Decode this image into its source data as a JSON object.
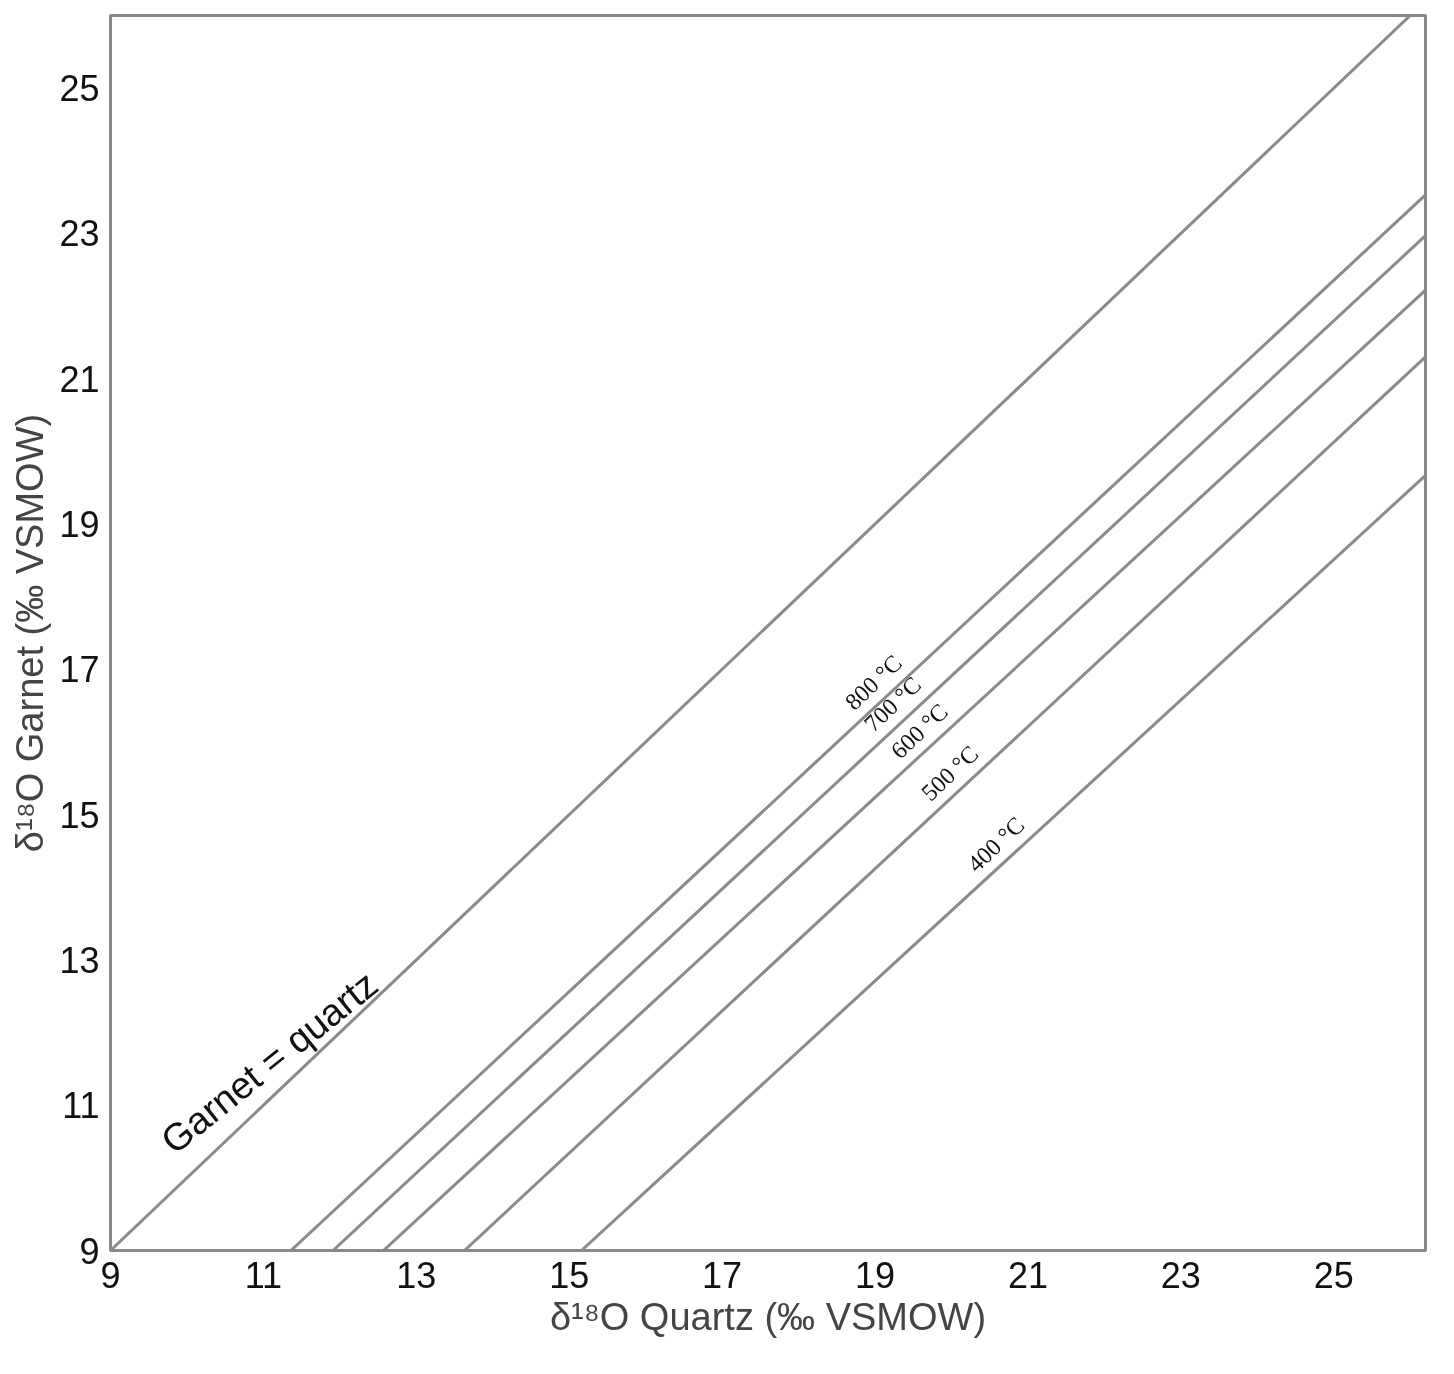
{
  "chart_data": {
    "type": "line",
    "xlabel": "δ¹⁸O Quartz (‰ VSMOW)",
    "ylabel": "δ¹⁸O Garnet (‰ VSMOW)",
    "xlim": [
      9,
      26.2
    ],
    "ylim": [
      9,
      26
    ],
    "xticks": [
      9,
      11,
      13,
      15,
      17,
      19,
      21,
      23,
      25
    ],
    "yticks": [
      9,
      11,
      13,
      15,
      17,
      19,
      21,
      23,
      25
    ],
    "grid": false,
    "line_style": "solid",
    "series": [
      {
        "color": "#8a8a8a",
        "x": [
          9,
          26
        ],
        "values": [
          9,
          26
        ]
      },
      {
        "color": "#8a8a8a",
        "x": [
          11.36,
          26.2
        ],
        "values": [
          9,
          23.53
        ]
      },
      {
        "color": "#8a8a8a",
        "x": [
          11.91,
          26.2
        ],
        "values": [
          9,
          22.97
        ]
      },
      {
        "color": "#8a8a8a",
        "x": [
          12.57,
          26.2
        ],
        "values": [
          9,
          22.22
        ]
      },
      {
        "color": "#8a8a8a",
        "x": [
          13.63,
          26.2
        ],
        "values": [
          9,
          21.3
        ]
      },
      {
        "color": "#8a8a8a",
        "x": [
          15.16,
          26.2
        ],
        "values": [
          9,
          19.67
        ]
      }
    ],
    "annotations": [
      {
        "text": "Garnet = quartz",
        "x": 11.3,
        "y": 11.3
      },
      {
        "text": "800 °C",
        "x": 19.15,
        "y": 16.63
      },
      {
        "text": "700 °C",
        "x": 19.4,
        "y": 16.33
      },
      {
        "text": "600 °C",
        "x": 19.75,
        "y": 15.96
      },
      {
        "text": "500 °C",
        "x": 20.15,
        "y": 15.38
      },
      {
        "text": "400 °C",
        "x": 20.75,
        "y": 14.4
      }
    ]
  }
}
